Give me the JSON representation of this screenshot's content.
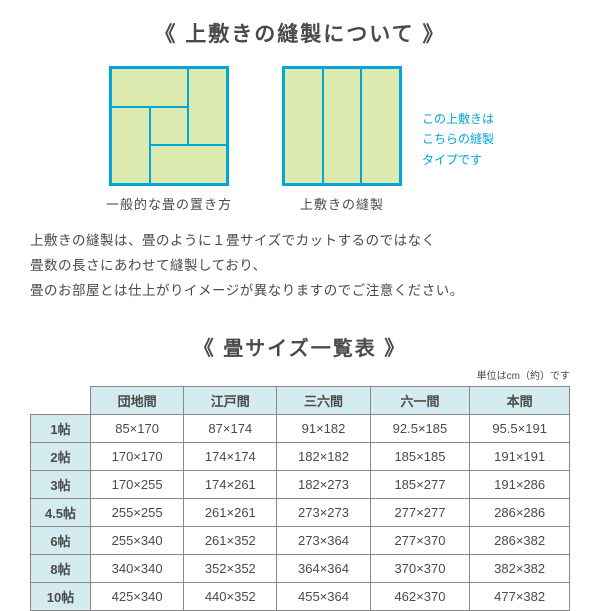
{
  "section1": {
    "title": "《 上敷きの縫製について 》",
    "diagramA_caption": "一般的な畳の置き方",
    "diagramB_caption": "上敷きの縫製",
    "side_note_l1": "この上敷きは",
    "side_note_l2": "こちらの縫製",
    "side_note_l3": "タイプです",
    "desc_l1": "上敷きの縫製は、畳のように１畳サイズでカットするのではなく",
    "desc_l2": "畳数の長さにあわせて縫製しており、",
    "desc_l3": "畳のお部屋とは仕上がりイメージが異なりますのでご注意ください。"
  },
  "section2": {
    "title": "《 畳サイズ一覧表 》",
    "unit_note": "単位はcm（約）です"
  },
  "table": {
    "columns": [
      "団地間",
      "江戸間",
      "三六間",
      "六一間",
      "本間"
    ],
    "rows": [
      {
        "label": "1帖",
        "cells": [
          "85×170",
          "87×174",
          "91×182",
          "92.5×185",
          "95.5×191"
        ]
      },
      {
        "label": "2帖",
        "cells": [
          "170×170",
          "174×174",
          "182×182",
          "185×185",
          "191×191"
        ]
      },
      {
        "label": "3帖",
        "cells": [
          "170×255",
          "174×261",
          "182×273",
          "185×277",
          "191×286"
        ]
      },
      {
        "label": "4.5帖",
        "cells": [
          "255×255",
          "261×261",
          "273×273",
          "277×277",
          "286×286"
        ]
      },
      {
        "label": "6帖",
        "cells": [
          "255×340",
          "261×352",
          "273×364",
          "277×370",
          "286×382"
        ]
      },
      {
        "label": "8帖",
        "cells": [
          "340×340",
          "352×352",
          "364×364",
          "370×370",
          "382×382"
        ]
      },
      {
        "label": "10帖",
        "cells": [
          "425×340",
          "440×352",
          "455×364",
          "462×370",
          "477×382"
        ]
      }
    ]
  },
  "colors": {
    "accent": "#00a6d6",
    "mat_fill": "#dceab0",
    "table_header_bg": "#d4ecef",
    "text": "#4a4a4a"
  }
}
